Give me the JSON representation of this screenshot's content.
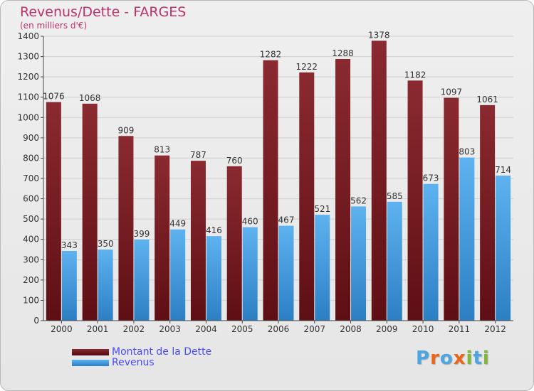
{
  "title": "Revenus/Dette - FARGES",
  "subtitle": "(en milliers d'€)",
  "logo": {
    "text": "Proxiti",
    "colors": [
      "#4da6e0",
      "#e8671b",
      "#4da6e0",
      "#e8671b",
      "#7db83a",
      "#4da6e0",
      "#7db83a"
    ]
  },
  "legend": [
    {
      "label": "Montant de la Dette",
      "color": "#6b1a1f"
    },
    {
      "label": "Revenus",
      "color": "#3d9ee3"
    }
  ],
  "colors": {
    "dette": "#7a2228",
    "revenus": "#4aa6e8"
  },
  "chart_data": {
    "type": "bar",
    "title": "Revenus/Dette - FARGES",
    "subtitle": "(en milliers d'€)",
    "categories": [
      "2000",
      "2001",
      "2002",
      "2003",
      "2004",
      "2005",
      "2006",
      "2007",
      "2008",
      "2009",
      "2010",
      "2011",
      "2012"
    ],
    "series": [
      {
        "name": "Montant de la Dette",
        "values": [
          1076,
          1068,
          909,
          813,
          787,
          760,
          1282,
          1222,
          1288,
          1378,
          1182,
          1097,
          1061
        ]
      },
      {
        "name": "Revenus",
        "values": [
          343,
          350,
          399,
          449,
          416,
          460,
          467,
          521,
          562,
          585,
          673,
          803,
          714
        ]
      }
    ],
    "ylim": [
      0,
      1400
    ],
    "yticks": [
      0,
      100,
      200,
      300,
      400,
      500,
      600,
      700,
      800,
      900,
      1000,
      1100,
      1200,
      1300,
      1400
    ],
    "grid": true,
    "legend_position": "bottom-left"
  }
}
